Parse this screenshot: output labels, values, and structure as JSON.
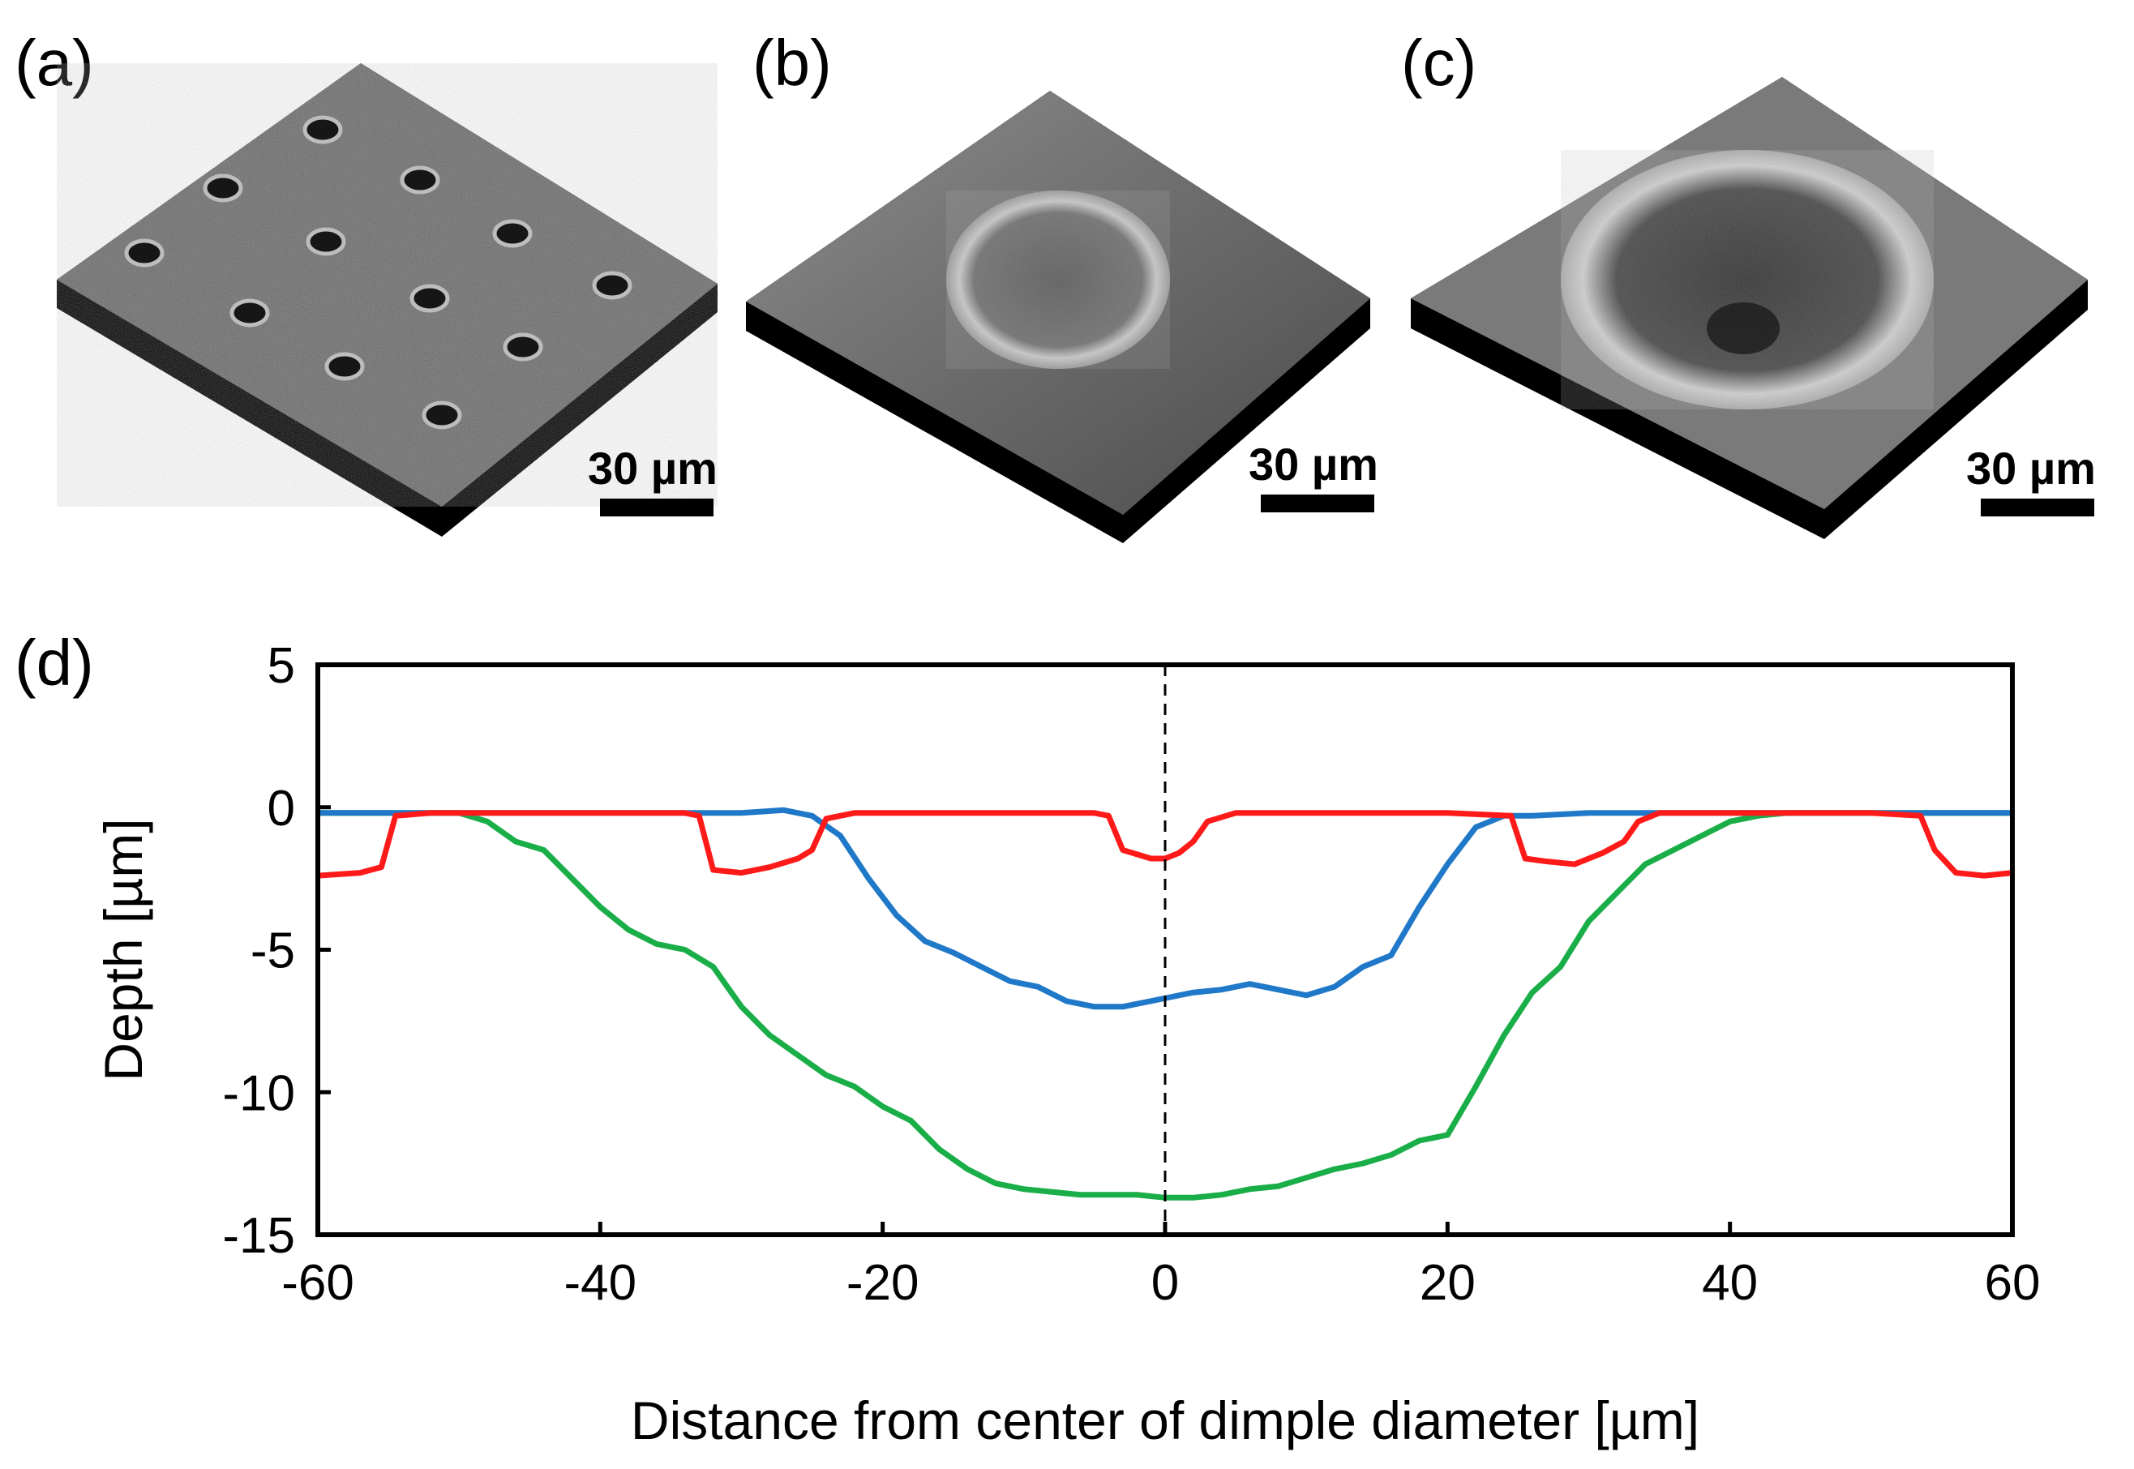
{
  "figure": {
    "panels": [
      {
        "label": "(a)",
        "scalebar": "30 µm",
        "description_icon": "sem-dimple-array"
      },
      {
        "label": "(b)",
        "scalebar": "30 µm",
        "description_icon": "sem-shallow-dimple"
      },
      {
        "label": "(c)",
        "scalebar": "30 µm",
        "description_icon": "sem-deep-dimple"
      }
    ],
    "chart_label": "(d)"
  },
  "chart_data": {
    "type": "line",
    "title": "",
    "xlabel": "Distance from center of dimple diameter [µm]",
    "ylabel": "Depth [µm]",
    "xlim": [
      -60,
      60
    ],
    "ylim": [
      -15,
      5
    ],
    "xticks": [
      -60,
      -40,
      -20,
      0,
      20,
      40,
      60
    ],
    "yticks": [
      5,
      0,
      -5,
      -10,
      -15
    ],
    "xtick_labels": [
      "-60",
      "-40",
      "-20",
      "0",
      "20",
      "40",
      "60"
    ],
    "ytick_labels": [
      "5",
      "0",
      "-5",
      "-10",
      "-15"
    ],
    "reference_line": {
      "x": 0,
      "style": "dashed"
    },
    "series": [
      {
        "name": "green",
        "color": "#1aae48",
        "x": [
          -60,
          -55,
          -50,
          -48,
          -46,
          -44,
          -42,
          -40,
          -38,
          -36,
          -34,
          -32,
          -30,
          -28,
          -26,
          -24,
          -22,
          -20,
          -18,
          -16,
          -14,
          -12,
          -10,
          -8,
          -6,
          -4,
          -2,
          0,
          2,
          4,
          6,
          8,
          10,
          12,
          14,
          16,
          18,
          20,
          22,
          24,
          26,
          28,
          30,
          32,
          34,
          36,
          38,
          40,
          42,
          44,
          46,
          48,
          50,
          52,
          54,
          56,
          58,
          60
        ],
        "y": [
          -0.2,
          -0.2,
          -0.2,
          -0.5,
          -1.2,
          -1.5,
          -2.5,
          -3.5,
          -4.3,
          -4.8,
          -5.0,
          -5.6,
          -7.0,
          -8.0,
          -8.7,
          -9.4,
          -9.8,
          -10.5,
          -11.0,
          -12.0,
          -12.7,
          -13.2,
          -13.4,
          -13.5,
          -13.6,
          -13.6,
          -13.6,
          -13.7,
          -13.7,
          -13.6,
          -13.4,
          -13.3,
          -13.0,
          -12.7,
          -12.5,
          -12.2,
          -11.7,
          -11.5,
          -9.8,
          -8.0,
          -6.5,
          -5.6,
          -4.0,
          -3.0,
          -2.0,
          -1.5,
          -1.0,
          -0.5,
          -0.3,
          -0.2,
          -0.2,
          -0.2,
          -0.2,
          -0.2,
          -0.2,
          -0.2,
          -0.2,
          -0.2
        ]
      },
      {
        "name": "blue",
        "color": "#1f78c8",
        "x": [
          -60,
          -30,
          -27,
          -25,
          -23,
          -21,
          -19,
          -17,
          -15,
          -13,
          -11,
          -9,
          -7,
          -5,
          -3,
          -1,
          0,
          2,
          4,
          6,
          8,
          10,
          12,
          14,
          16,
          18,
          20,
          22,
          24,
          26,
          30,
          60
        ],
        "y": [
          -0.2,
          -0.2,
          -0.1,
          -0.3,
          -1.0,
          -2.5,
          -3.8,
          -4.7,
          -5.1,
          -5.6,
          -6.1,
          -6.3,
          -6.8,
          -7.0,
          -7.0,
          -6.8,
          -6.7,
          -6.5,
          -6.4,
          -6.2,
          -6.4,
          -6.6,
          -6.3,
          -5.6,
          -5.2,
          -3.5,
          -2.0,
          -0.7,
          -0.3,
          -0.3,
          -0.2,
          -0.2
        ]
      },
      {
        "name": "red",
        "color": "#ff1a1a",
        "x": [
          -60,
          -57,
          -55.5,
          -54.5,
          -52,
          -40,
          -34,
          -33,
          -32,
          -30,
          -28,
          -26,
          -25,
          -24,
          -22,
          -10,
          -5,
          -4,
          -3,
          -1,
          0,
          1,
          2,
          3,
          5,
          10,
          20,
          24.5,
          25.5,
          27,
          29,
          31,
          32.5,
          33.5,
          35,
          40,
          50,
          53.5,
          54.5,
          56,
          58,
          60
        ],
        "y": [
          -2.4,
          -2.3,
          -2.1,
          -0.3,
          -0.2,
          -0.2,
          -0.2,
          -0.3,
          -2.2,
          -2.3,
          -2.1,
          -1.8,
          -1.5,
          -0.4,
          -0.2,
          -0.2,
          -0.2,
          -0.3,
          -1.5,
          -1.8,
          -1.8,
          -1.6,
          -1.2,
          -0.5,
          -0.2,
          -0.2,
          -0.2,
          -0.3,
          -1.8,
          -1.9,
          -2.0,
          -1.6,
          -1.2,
          -0.5,
          -0.2,
          -0.2,
          -0.2,
          -0.3,
          -1.5,
          -2.3,
          -2.4,
          -2.3
        ]
      }
    ]
  }
}
